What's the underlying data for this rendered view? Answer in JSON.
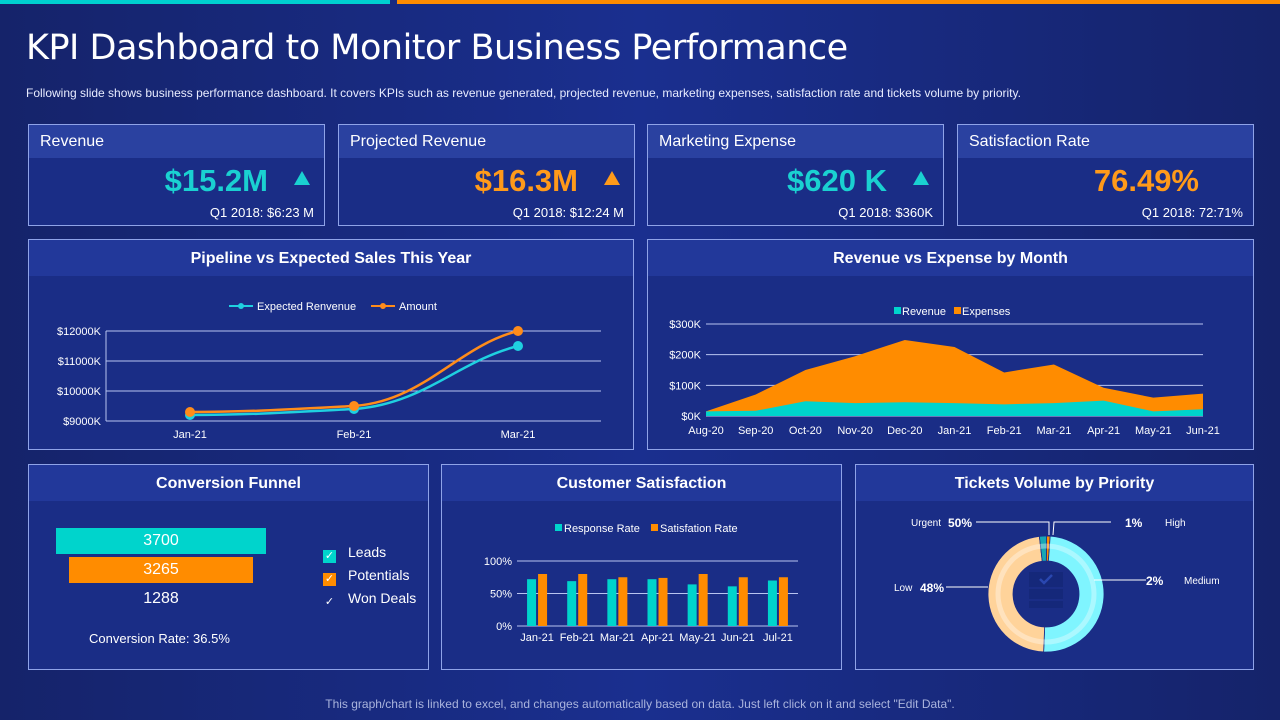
{
  "title": "KPI Dashboard to Monitor Business Performance",
  "subtitle": "Following slide shows business performance  dashboard. It covers KPIs such as revenue  generated,  projected revenue,  marketing expenses, satisfaction rate and tickets volume  by priority.",
  "kpis": [
    {
      "label": "Revenue",
      "value": "$15.2M",
      "compare": "Q1 2018: $6:23 M",
      "color": "#1ad1d1",
      "trend": "up"
    },
    {
      "label": "Projected Revenue",
      "value": "$16.3M",
      "compare": "Q1 2018: $12:24 M",
      "color": "#ff9a1a",
      "trend": "up"
    },
    {
      "label": "Marketing Expense",
      "value": "$620 K",
      "compare": "Q1 2018: $360K",
      "color": "#1ad1d1",
      "trend": "up"
    },
    {
      "label": "Satisfaction Rate",
      "value": "76.49%",
      "compare": "Q1 2018: 72:71%",
      "color": "#ff9a1a"
    }
  ],
  "chart_data": [
    {
      "type": "line",
      "title": "Pipeline vs Expected Sales This Year",
      "categories": [
        "Jan-21",
        "Feb-21",
        "Mar-21"
      ],
      "ylim": [
        9000,
        12000
      ],
      "yticks": [
        "$9000K",
        "$10000K",
        "$11000K",
        "$12000K"
      ],
      "legend": "top",
      "grid": true,
      "series": [
        {
          "name": "Expected Renvenue",
          "values": [
            9200,
            9400,
            11500
          ],
          "color": "#1fd0e0"
        },
        {
          "name": "Amount",
          "values": [
            9300,
            9500,
            12000
          ],
          "color": "#ff8c1a"
        }
      ]
    },
    {
      "type": "area",
      "title": "Revenue vs Expense by Month",
      "categories": [
        "Aug-20",
        "Sep-20",
        "Oct-20",
        "Nov-20",
        "Dec-20",
        "Jan-21",
        "Feb-21",
        "Mar-21",
        "Apr-21",
        "May-21",
        "Jun-21"
      ],
      "ylim": [
        0,
        300
      ],
      "yticks": [
        "$0K",
        "$100K",
        "$200K",
        "$300K"
      ],
      "legend": "top",
      "grid": true,
      "series": [
        {
          "name": "Revenue",
          "values": [
            15,
            17,
            48,
            42,
            45,
            42,
            38,
            42,
            50,
            15,
            22
          ],
          "color": "#00d4cc"
        },
        {
          "name": "Expenses",
          "values": [
            15,
            70,
            150,
            195,
            248,
            225,
            142,
            168,
            92,
            60,
            73
          ],
          "color": "#ff8c00"
        }
      ]
    },
    {
      "type": "funnel",
      "title": "Conversion Funnel",
      "series": [
        {
          "name": "Leads",
          "value": 3700,
          "color": "#00d4cc"
        },
        {
          "name": "Potentials",
          "value": 3265,
          "color": "#ff8c00"
        },
        {
          "name": "Won Deals",
          "value": 1288
        }
      ],
      "annotation": "Conversion  Rate: 36.5%"
    },
    {
      "type": "bar",
      "title": "Customer Satisfaction",
      "categories": [
        "Jan-21",
        "Feb-21",
        "Mar-21",
        "Apr-21",
        "May-21",
        "Jun-21",
        "Jul-21"
      ],
      "ylim": [
        0,
        100
      ],
      "yticks": [
        "0%",
        "50%",
        "100%"
      ],
      "legend": "top",
      "grid": true,
      "series": [
        {
          "name": "Response Rate",
          "values": [
            72,
            69,
            72,
            72,
            64,
            61,
            70
          ],
          "color": "#00d4cc"
        },
        {
          "name": "Satisfation Rate",
          "values": [
            80,
            80,
            75,
            74,
            80,
            75,
            75
          ],
          "color": "#ff8c00"
        }
      ]
    },
    {
      "type": "pie",
      "title": "Tickets Volume by Priority",
      "slices": [
        {
          "name": "High",
          "label": "1%",
          "value": 1,
          "color": "#ff8c00"
        },
        {
          "name": "Medium",
          "label": "2%",
          "value": 2,
          "color": "#7ff5ff"
        },
        {
          "name": "Urgent",
          "label": "50%",
          "value": 50,
          "color": "#7ff5ff"
        },
        {
          "name": "Low",
          "label": "48%",
          "value": 48,
          "color": "#ffd39a"
        }
      ]
    }
  ],
  "footer": "This graph/chart is linked to excel, and changes automatically based on data. Just left click on it and select \"Edit Data\"."
}
